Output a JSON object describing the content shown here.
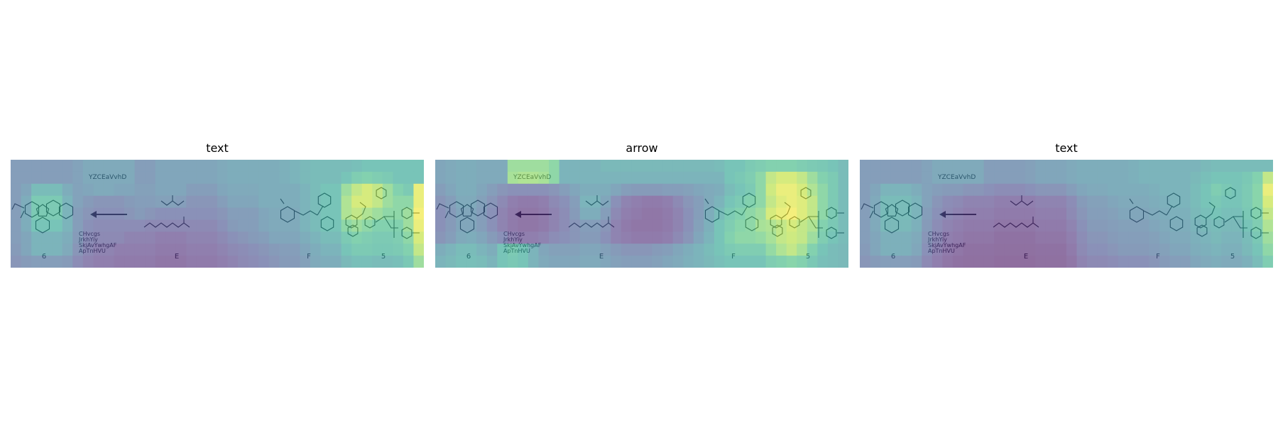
{
  "panels": [
    {
      "title": "text",
      "heatmap": [
        [
          0.3,
          0.3,
          0.3,
          0.3,
          0.3,
          0.3,
          0.33,
          0.38,
          0.38,
          0.38,
          0.38,
          0.38,
          0.3,
          0.3,
          0.35,
          0.35,
          0.35,
          0.35,
          0.35,
          0.35,
          0.38,
          0.4,
          0.4,
          0.4,
          0.4,
          0.4,
          0.42,
          0.45,
          0.48,
          0.5,
          0.5,
          0.5,
          0.5,
          0.52,
          0.55,
          0.55,
          0.55,
          0.55,
          0.55,
          0.55
        ],
        [
          0.3,
          0.3,
          0.3,
          0.3,
          0.3,
          0.3,
          0.33,
          0.38,
          0.38,
          0.38,
          0.38,
          0.38,
          0.3,
          0.3,
          0.35,
          0.35,
          0.35,
          0.35,
          0.35,
          0.35,
          0.38,
          0.4,
          0.4,
          0.4,
          0.4,
          0.4,
          0.42,
          0.45,
          0.48,
          0.5,
          0.5,
          0.5,
          0.55,
          0.62,
          0.65,
          0.62,
          0.6,
          0.55,
          0.55,
          0.55
        ],
        [
          0.3,
          0.35,
          0.5,
          0.5,
          0.5,
          0.4,
          0.33,
          0.35,
          0.38,
          0.38,
          0.35,
          0.35,
          0.32,
          0.32,
          0.35,
          0.35,
          0.35,
          0.3,
          0.3,
          0.3,
          0.35,
          0.38,
          0.38,
          0.38,
          0.4,
          0.4,
          0.4,
          0.4,
          0.45,
          0.5,
          0.55,
          0.55,
          0.75,
          0.85,
          0.9,
          0.85,
          0.75,
          0.65,
          0.6,
          0.95
        ],
        [
          0.3,
          0.4,
          0.6,
          0.6,
          0.6,
          0.45,
          0.33,
          0.28,
          0.25,
          0.25,
          0.25,
          0.28,
          0.3,
          0.3,
          0.32,
          0.32,
          0.3,
          0.25,
          0.25,
          0.25,
          0.3,
          0.35,
          0.35,
          0.35,
          0.4,
          0.4,
          0.4,
          0.4,
          0.45,
          0.5,
          0.55,
          0.55,
          0.8,
          0.9,
          0.9,
          0.85,
          0.75,
          0.7,
          0.7,
          0.95
        ],
        [
          0.3,
          0.4,
          0.6,
          0.6,
          0.6,
          0.45,
          0.3,
          0.25,
          0.22,
          0.22,
          0.22,
          0.25,
          0.28,
          0.25,
          0.22,
          0.22,
          0.22,
          0.22,
          0.22,
          0.22,
          0.25,
          0.3,
          0.3,
          0.3,
          0.35,
          0.38,
          0.38,
          0.38,
          0.45,
          0.5,
          0.55,
          0.55,
          0.8,
          0.85,
          0.8,
          0.75,
          0.7,
          0.7,
          0.75,
          0.98
        ],
        [
          0.3,
          0.4,
          0.55,
          0.55,
          0.55,
          0.45,
          0.3,
          0.22,
          0.2,
          0.2,
          0.2,
          0.2,
          0.2,
          0.18,
          0.18,
          0.18,
          0.18,
          0.18,
          0.18,
          0.18,
          0.22,
          0.28,
          0.3,
          0.3,
          0.35,
          0.38,
          0.38,
          0.38,
          0.45,
          0.5,
          0.55,
          0.55,
          0.7,
          0.75,
          0.7,
          0.65,
          0.65,
          0.65,
          0.75,
          0.95
        ],
        [
          0.3,
          0.35,
          0.45,
          0.45,
          0.45,
          0.4,
          0.28,
          0.2,
          0.18,
          0.18,
          0.18,
          0.15,
          0.15,
          0.15,
          0.12,
          0.12,
          0.12,
          0.15,
          0.15,
          0.15,
          0.18,
          0.22,
          0.25,
          0.28,
          0.3,
          0.35,
          0.35,
          0.35,
          0.4,
          0.45,
          0.5,
          0.5,
          0.6,
          0.65,
          0.62,
          0.6,
          0.6,
          0.62,
          0.7,
          0.9
        ],
        [
          0.28,
          0.35,
          0.45,
          0.45,
          0.45,
          0.38,
          0.25,
          0.18,
          0.15,
          0.15,
          0.12,
          0.12,
          0.12,
          0.12,
          0.1,
          0.1,
          0.1,
          0.12,
          0.12,
          0.12,
          0.15,
          0.18,
          0.2,
          0.22,
          0.25,
          0.28,
          0.3,
          0.3,
          0.35,
          0.4,
          0.45,
          0.45,
          0.55,
          0.6,
          0.6,
          0.58,
          0.58,
          0.6,
          0.65,
          0.85
        ],
        [
          0.25,
          0.28,
          0.3,
          0.3,
          0.3,
          0.28,
          0.2,
          0.15,
          0.12,
          0.12,
          0.1,
          0.1,
          0.1,
          0.1,
          0.08,
          0.08,
          0.08,
          0.1,
          0.1,
          0.1,
          0.12,
          0.15,
          0.18,
          0.2,
          0.22,
          0.25,
          0.28,
          0.28,
          0.32,
          0.38,
          0.4,
          0.4,
          0.48,
          0.52,
          0.52,
          0.5,
          0.5,
          0.52,
          0.58,
          0.75
        ]
      ],
      "labels": {
        "top_text": "YZCEaVvhD",
        "cond_lines": [
          "CHvcgs",
          "JrkhYiy",
          "SkjAvYwhgAF",
          "ApTnHVU"
        ],
        "cap_6": "6",
        "cap_E": "E",
        "cap_F": "F",
        "cap_5": "5"
      }
    },
    {
      "title": "arrow",
      "heatmap": [
        [
          0.35,
          0.38,
          0.4,
          0.4,
          0.38,
          0.38,
          0.38,
          0.75,
          0.75,
          0.75,
          0.75,
          0.7,
          0.45,
          0.45,
          0.45,
          0.45,
          0.48,
          0.48,
          0.48,
          0.48,
          0.48,
          0.48,
          0.48,
          0.48,
          0.48,
          0.48,
          0.48,
          0.5,
          0.55,
          0.55,
          0.6,
          0.62,
          0.65,
          0.65,
          0.65,
          0.62,
          0.6,
          0.58,
          0.55,
          0.5
        ],
        [
          0.35,
          0.38,
          0.4,
          0.4,
          0.38,
          0.38,
          0.38,
          0.78,
          0.8,
          0.8,
          0.78,
          0.7,
          0.45,
          0.45,
          0.45,
          0.45,
          0.45,
          0.45,
          0.45,
          0.45,
          0.45,
          0.45,
          0.45,
          0.45,
          0.45,
          0.45,
          0.45,
          0.45,
          0.55,
          0.58,
          0.62,
          0.7,
          0.85,
          0.9,
          0.9,
          0.85,
          0.75,
          0.65,
          0.6,
          0.5
        ],
        [
          0.3,
          0.35,
          0.4,
          0.4,
          0.35,
          0.3,
          0.25,
          0.22,
          0.22,
          0.22,
          0.22,
          0.25,
          0.3,
          0.35,
          0.4,
          0.4,
          0.4,
          0.35,
          0.3,
          0.28,
          0.28,
          0.28,
          0.3,
          0.3,
          0.32,
          0.35,
          0.38,
          0.4,
          0.5,
          0.55,
          0.6,
          0.7,
          0.88,
          0.95,
          0.95,
          0.9,
          0.8,
          0.7,
          0.6,
          0.5
        ],
        [
          0.25,
          0.3,
          0.38,
          0.38,
          0.32,
          0.25,
          0.18,
          0.12,
          0.1,
          0.1,
          0.12,
          0.18,
          0.22,
          0.3,
          0.45,
          0.45,
          0.35,
          0.22,
          0.15,
          0.12,
          0.1,
          0.1,
          0.12,
          0.18,
          0.25,
          0.3,
          0.38,
          0.45,
          0.55,
          0.6,
          0.65,
          0.7,
          0.85,
          0.92,
          0.95,
          0.92,
          0.85,
          0.7,
          0.6,
          0.5
        ],
        [
          0.22,
          0.28,
          0.35,
          0.35,
          0.3,
          0.22,
          0.15,
          0.1,
          0.08,
          0.08,
          0.1,
          0.15,
          0.2,
          0.28,
          0.4,
          0.4,
          0.3,
          0.18,
          0.12,
          0.1,
          0.08,
          0.08,
          0.1,
          0.15,
          0.22,
          0.3,
          0.4,
          0.5,
          0.6,
          0.65,
          0.7,
          0.75,
          0.9,
          0.95,
          0.98,
          0.92,
          0.85,
          0.7,
          0.6,
          0.5
        ],
        [
          0.22,
          0.28,
          0.35,
          0.35,
          0.3,
          0.22,
          0.15,
          0.1,
          0.08,
          0.08,
          0.1,
          0.15,
          0.2,
          0.25,
          0.3,
          0.3,
          0.25,
          0.15,
          0.1,
          0.08,
          0.08,
          0.08,
          0.1,
          0.15,
          0.22,
          0.32,
          0.42,
          0.55,
          0.62,
          0.68,
          0.7,
          0.78,
          0.8,
          0.85,
          0.9,
          0.85,
          0.8,
          0.65,
          0.58,
          0.5
        ],
        [
          0.25,
          0.3,
          0.38,
          0.4,
          0.35,
          0.28,
          0.22,
          0.15,
          0.12,
          0.12,
          0.15,
          0.2,
          0.22,
          0.25,
          0.28,
          0.28,
          0.22,
          0.15,
          0.12,
          0.1,
          0.1,
          0.1,
          0.12,
          0.18,
          0.25,
          0.35,
          0.45,
          0.55,
          0.65,
          0.7,
          0.7,
          0.72,
          0.78,
          0.85,
          0.88,
          0.85,
          0.75,
          0.62,
          0.55,
          0.5
        ],
        [
          0.4,
          0.45,
          0.5,
          0.5,
          0.45,
          0.4,
          0.55,
          0.6,
          0.55,
          0.45,
          0.35,
          0.32,
          0.32,
          0.32,
          0.35,
          0.35,
          0.32,
          0.28,
          0.25,
          0.25,
          0.25,
          0.28,
          0.3,
          0.35,
          0.4,
          0.45,
          0.5,
          0.55,
          0.6,
          0.62,
          0.62,
          0.62,
          0.72,
          0.8,
          0.85,
          0.78,
          0.65,
          0.55,
          0.5,
          0.48
        ],
        [
          0.45,
          0.48,
          0.52,
          0.52,
          0.5,
          0.45,
          0.55,
          0.58,
          0.55,
          0.45,
          0.38,
          0.35,
          0.35,
          0.35,
          0.38,
          0.38,
          0.35,
          0.32,
          0.3,
          0.3,
          0.3,
          0.32,
          0.35,
          0.38,
          0.42,
          0.45,
          0.48,
          0.52,
          0.55,
          0.55,
          0.55,
          0.55,
          0.62,
          0.65,
          0.68,
          0.65,
          0.58,
          0.52,
          0.5,
          0.48
        ]
      ],
      "labels": {
        "top_text": "YZCEaVvhD",
        "cond_lines": [
          "CHvcgs",
          "JrkhYiy",
          "SkjAvYwhgAF",
          "ApTnHVU"
        ],
        "cap_6": "6",
        "cap_E": "E",
        "cap_F": "F",
        "cap_5": "5"
      }
    },
    {
      "title": "text",
      "heatmap": [
        [
          0.3,
          0.3,
          0.3,
          0.3,
          0.3,
          0.3,
          0.33,
          0.38,
          0.38,
          0.38,
          0.38,
          0.38,
          0.3,
          0.3,
          0.3,
          0.3,
          0.32,
          0.35,
          0.35,
          0.35,
          0.38,
          0.4,
          0.4,
          0.4,
          0.4,
          0.4,
          0.42,
          0.45,
          0.45,
          0.45,
          0.45,
          0.45,
          0.45,
          0.48,
          0.5,
          0.5,
          0.5,
          0.5,
          0.5,
          0.5
        ],
        [
          0.3,
          0.3,
          0.3,
          0.3,
          0.3,
          0.3,
          0.33,
          0.38,
          0.38,
          0.38,
          0.38,
          0.38,
          0.3,
          0.3,
          0.3,
          0.3,
          0.32,
          0.35,
          0.35,
          0.35,
          0.38,
          0.4,
          0.4,
          0.4,
          0.4,
          0.4,
          0.42,
          0.45,
          0.45,
          0.45,
          0.45,
          0.45,
          0.48,
          0.52,
          0.55,
          0.55,
          0.55,
          0.58,
          0.65,
          0.85
        ],
        [
          0.3,
          0.35,
          0.45,
          0.45,
          0.45,
          0.4,
          0.33,
          0.3,
          0.28,
          0.28,
          0.25,
          0.25,
          0.22,
          0.2,
          0.2,
          0.2,
          0.22,
          0.25,
          0.25,
          0.25,
          0.3,
          0.35,
          0.38,
          0.38,
          0.4,
          0.4,
          0.4,
          0.4,
          0.42,
          0.45,
          0.45,
          0.45,
          0.5,
          0.55,
          0.62,
          0.58,
          0.55,
          0.6,
          0.68,
          0.95
        ],
        [
          0.3,
          0.38,
          0.5,
          0.5,
          0.5,
          0.45,
          0.33,
          0.25,
          0.2,
          0.18,
          0.15,
          0.15,
          0.15,
          0.12,
          0.12,
          0.12,
          0.12,
          0.15,
          0.15,
          0.15,
          0.2,
          0.28,
          0.32,
          0.32,
          0.35,
          0.38,
          0.38,
          0.38,
          0.4,
          0.42,
          0.45,
          0.45,
          0.5,
          0.55,
          0.58,
          0.55,
          0.55,
          0.6,
          0.68,
          0.9
        ],
        [
          0.3,
          0.38,
          0.5,
          0.5,
          0.5,
          0.45,
          0.3,
          0.22,
          0.18,
          0.15,
          0.12,
          0.12,
          0.12,
          0.1,
          0.1,
          0.1,
          0.1,
          0.12,
          0.12,
          0.12,
          0.18,
          0.25,
          0.3,
          0.3,
          0.32,
          0.35,
          0.35,
          0.35,
          0.38,
          0.4,
          0.42,
          0.42,
          0.48,
          0.52,
          0.55,
          0.52,
          0.52,
          0.58,
          0.65,
          0.85
        ],
        [
          0.3,
          0.38,
          0.48,
          0.48,
          0.48,
          0.42,
          0.28,
          0.2,
          0.15,
          0.12,
          0.1,
          0.1,
          0.1,
          0.08,
          0.08,
          0.08,
          0.08,
          0.1,
          0.1,
          0.1,
          0.15,
          0.22,
          0.28,
          0.28,
          0.3,
          0.32,
          0.32,
          0.32,
          0.35,
          0.38,
          0.4,
          0.4,
          0.45,
          0.48,
          0.5,
          0.48,
          0.48,
          0.55,
          0.62,
          0.8
        ],
        [
          0.3,
          0.35,
          0.42,
          0.42,
          0.42,
          0.38,
          0.25,
          0.18,
          0.12,
          0.1,
          0.08,
          0.08,
          0.08,
          0.06,
          0.06,
          0.06,
          0.06,
          0.08,
          0.08,
          0.08,
          0.12,
          0.2,
          0.25,
          0.25,
          0.28,
          0.3,
          0.3,
          0.3,
          0.32,
          0.35,
          0.38,
          0.38,
          0.42,
          0.45,
          0.48,
          0.45,
          0.45,
          0.5,
          0.58,
          0.75
        ],
        [
          0.28,
          0.35,
          0.42,
          0.42,
          0.42,
          0.36,
          0.22,
          0.15,
          0.1,
          0.08,
          0.06,
          0.06,
          0.06,
          0.05,
          0.05,
          0.05,
          0.05,
          0.06,
          0.06,
          0.06,
          0.1,
          0.18,
          0.22,
          0.22,
          0.25,
          0.28,
          0.28,
          0.28,
          0.3,
          0.32,
          0.35,
          0.35,
          0.4,
          0.42,
          0.45,
          0.42,
          0.42,
          0.48,
          0.55,
          0.7
        ],
        [
          0.25,
          0.28,
          0.3,
          0.3,
          0.3,
          0.28,
          0.18,
          0.12,
          0.08,
          0.06,
          0.05,
          0.05,
          0.05,
          0.04,
          0.04,
          0.04,
          0.04,
          0.05,
          0.05,
          0.05,
          0.08,
          0.15,
          0.18,
          0.18,
          0.2,
          0.22,
          0.22,
          0.22,
          0.25,
          0.28,
          0.3,
          0.3,
          0.35,
          0.38,
          0.4,
          0.38,
          0.38,
          0.42,
          0.5,
          0.62
        ]
      ],
      "labels": {
        "top_text": "YZCEaVvhD",
        "cond_lines": [
          "CHvcgs",
          "JrkhYiy",
          "SkjAvYwhgAF",
          "ApTnHVU"
        ],
        "cap_6": "6",
        "cap_E": "E",
        "cap_F": "F",
        "cap_5": "5"
      }
    }
  ],
  "colormap": "viridis"
}
